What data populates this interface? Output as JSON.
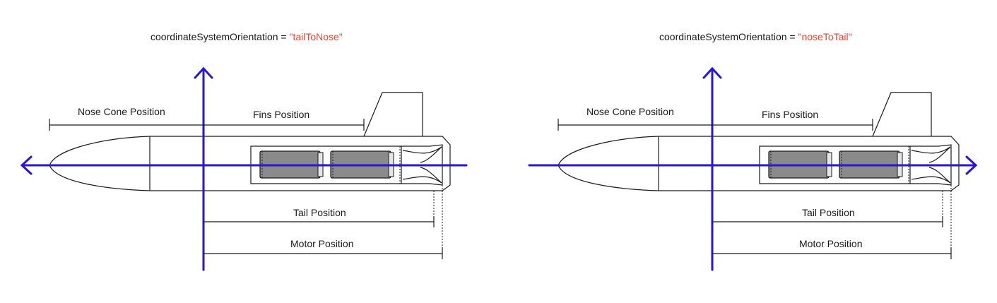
{
  "title_prefix": "coordinateSystemOrientation = ",
  "panels": [
    {
      "orientation_value": "\"tailToNose\"",
      "x_arrow_direction": "left"
    },
    {
      "orientation_value": "\"noseToTail\"",
      "x_arrow_direction": "right"
    }
  ],
  "labels": {
    "nose_cone_position": "Nose Cone Position",
    "fins_position": "Fins Position",
    "tail_position": "Tail Position",
    "motor_position": "Motor Position"
  },
  "colors": {
    "axis": "#2a14d6",
    "value_text": "#e0473a",
    "outline": "#1a1a1a",
    "motor": "#8a8a8a"
  }
}
